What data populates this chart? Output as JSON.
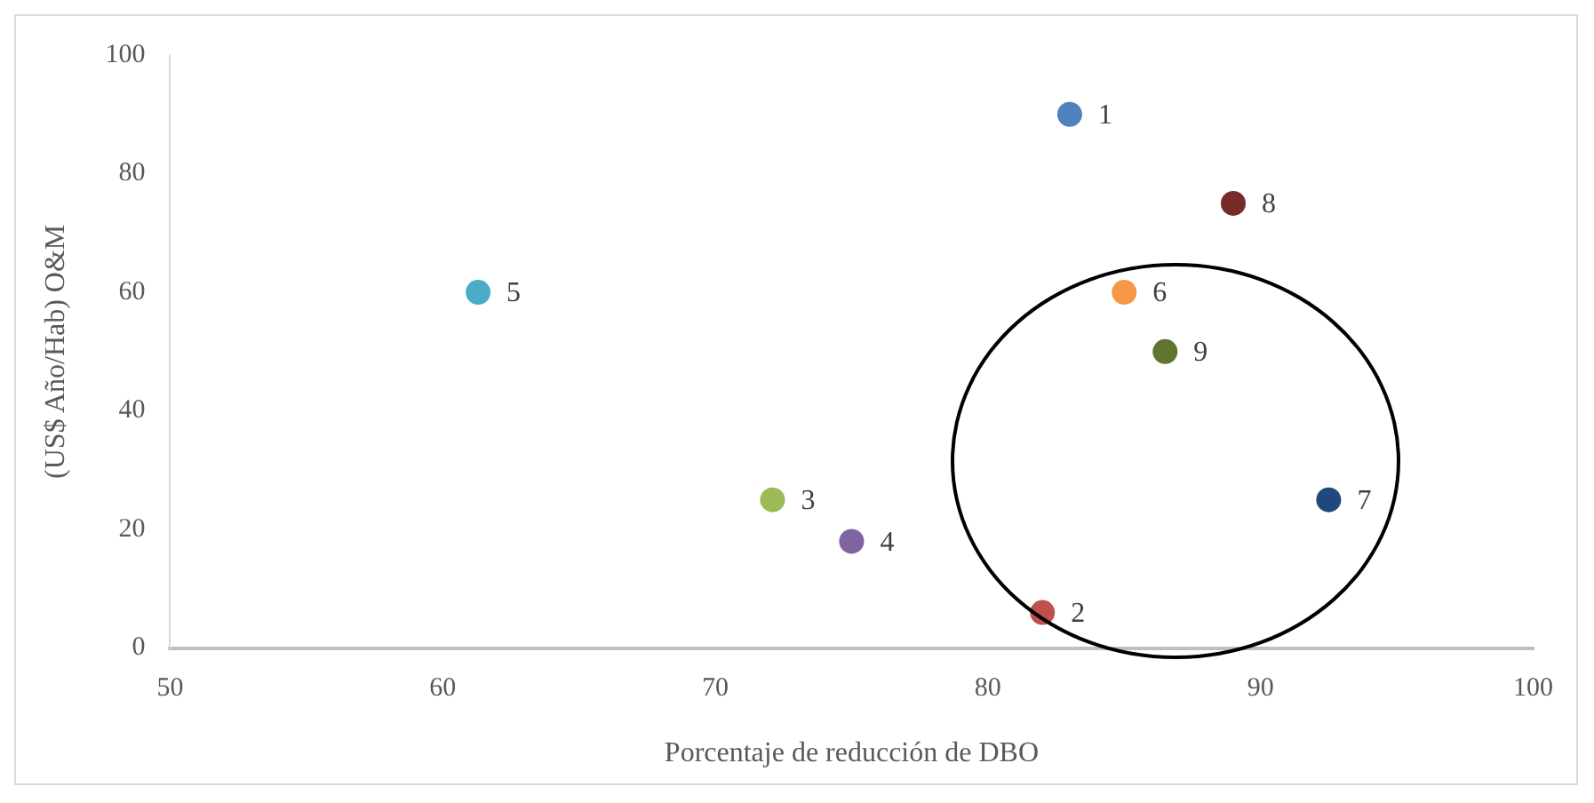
{
  "chart_data": {
    "type": "scatter",
    "xlabel": "Porcentaje de reducción de DBO",
    "ylabel": "(US$ Año/Hab) O&M",
    "xlim": [
      50,
      100
    ],
    "xticks": [
      50,
      60,
      70,
      80,
      90,
      100
    ],
    "ylim": [
      0,
      100
    ],
    "yticks": [
      0,
      20,
      40,
      60,
      80,
      100
    ],
    "grid": false,
    "legend": false,
    "marker": "circle",
    "series": [
      {
        "name": "1",
        "color": "#4f81bd",
        "x": [
          83
        ],
        "values": [
          90
        ]
      },
      {
        "name": "2",
        "color": "#c0504d",
        "x": [
          82
        ],
        "values": [
          6
        ]
      },
      {
        "name": "3",
        "color": "#9bbb59",
        "x": [
          72.1
        ],
        "values": [
          25
        ]
      },
      {
        "name": "4",
        "color": "#8064a2",
        "x": [
          75
        ],
        "values": [
          18
        ]
      },
      {
        "name": "5",
        "color": "#4bacc6",
        "x": [
          61.3
        ],
        "values": [
          60
        ]
      },
      {
        "name": "6",
        "color": "#f79646",
        "x": [
          85
        ],
        "values": [
          60
        ]
      },
      {
        "name": "7",
        "color": "#1f497d",
        "x": [
          92.5
        ],
        "values": [
          25
        ]
      },
      {
        "name": "8",
        "color": "#772c2a",
        "x": [
          89
        ],
        "values": [
          75
        ]
      },
      {
        "name": "9",
        "color": "#5f7530",
        "x": [
          86.5
        ],
        "values": [
          50
        ]
      }
    ]
  }
}
